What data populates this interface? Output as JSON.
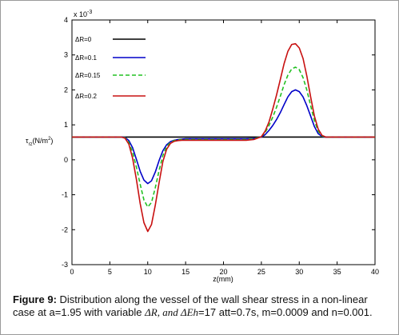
{
  "chart_data": {
    "type": "line",
    "title": "",
    "xlabel": "z(mm)",
    "ylabel_main": "τ",
    "ylabel_sub": "rz",
    "ylabel_unit": "(N/m",
    "ylabel_sup": "2",
    "ylabel_close": ")",
    "y_multiplier_base": "x 10",
    "y_multiplier_exp": "-3",
    "xlim": [
      0,
      40
    ],
    "ylim": [
      -3,
      4
    ],
    "xticks": [
      "0",
      "5",
      "10",
      "15",
      "20",
      "25",
      "30",
      "35",
      "40"
    ],
    "yticks": [
      "-3",
      "-2",
      "-1",
      "0",
      "1",
      "2",
      "3",
      "4"
    ],
    "grid": false,
    "legend_position": "top-left",
    "x": [
      0,
      6,
      6.5,
      7,
      7.5,
      8,
      8.5,
      9,
      9.5,
      10,
      10.5,
      11,
      11.5,
      12,
      12.5,
      13,
      13.5,
      14,
      14.5,
      15,
      16,
      17,
      18,
      19,
      20,
      21,
      22,
      23,
      24,
      25,
      25.5,
      26,
      26.5,
      27,
      27.5,
      28,
      28.5,
      29,
      29.5,
      30,
      30.5,
      31,
      31.5,
      32,
      32.5,
      33,
      33.5,
      34,
      40
    ],
    "series": [
      {
        "name": "ΔR=0",
        "color": "#000000",
        "dash": "solid",
        "values": [
          0.65,
          0.65,
          0.65,
          0.65,
          0.65,
          0.65,
          0.65,
          0.65,
          0.65,
          0.65,
          0.65,
          0.65,
          0.65,
          0.65,
          0.65,
          0.65,
          0.65,
          0.65,
          0.65,
          0.65,
          0.65,
          0.65,
          0.65,
          0.65,
          0.65,
          0.65,
          0.65,
          0.65,
          0.65,
          0.65,
          0.65,
          0.65,
          0.65,
          0.65,
          0.65,
          0.65,
          0.65,
          0.65,
          0.65,
          0.65,
          0.65,
          0.65,
          0.65,
          0.65,
          0.65,
          0.65,
          0.65,
          0.65,
          0.65
        ]
      },
      {
        "name": "ΔR=0.1",
        "color": "#0000c8",
        "dash": "solid",
        "values": [
          0.65,
          0.65,
          0.65,
          0.64,
          0.55,
          0.35,
          0.02,
          -0.33,
          -0.58,
          -0.68,
          -0.6,
          -0.35,
          -0.02,
          0.26,
          0.43,
          0.52,
          0.56,
          0.58,
          0.59,
          0.6,
          0.6,
          0.6,
          0.6,
          0.6,
          0.6,
          0.6,
          0.6,
          0.6,
          0.61,
          0.65,
          0.72,
          0.84,
          0.98,
          1.15,
          1.35,
          1.58,
          1.8,
          1.95,
          2.0,
          1.95,
          1.8,
          1.55,
          1.25,
          0.95,
          0.75,
          0.67,
          0.65,
          0.65,
          0.65
        ]
      },
      {
        "name": "ΔR=0.15",
        "color": "#22c022",
        "dash": "dashed",
        "values": [
          0.65,
          0.65,
          0.65,
          0.63,
          0.5,
          0.22,
          -0.2,
          -0.7,
          -1.15,
          -1.35,
          -1.22,
          -0.8,
          -0.3,
          0.12,
          0.38,
          0.5,
          0.55,
          0.57,
          0.58,
          0.58,
          0.58,
          0.58,
          0.58,
          0.58,
          0.58,
          0.58,
          0.58,
          0.58,
          0.6,
          0.66,
          0.78,
          0.98,
          1.22,
          1.5,
          1.82,
          2.15,
          2.42,
          2.6,
          2.65,
          2.58,
          2.35,
          2.0,
          1.55,
          1.12,
          0.82,
          0.68,
          0.65,
          0.65,
          0.65
        ]
      },
      {
        "name": "ΔR=0.2",
        "color": "#c81010",
        "dash": "solid",
        "values": [
          0.65,
          0.65,
          0.65,
          0.62,
          0.45,
          0.05,
          -0.55,
          -1.25,
          -1.8,
          -2.05,
          -1.85,
          -1.3,
          -0.65,
          -0.05,
          0.3,
          0.47,
          0.53,
          0.55,
          0.56,
          0.56,
          0.56,
          0.56,
          0.56,
          0.56,
          0.56,
          0.56,
          0.56,
          0.56,
          0.58,
          0.66,
          0.82,
          1.08,
          1.45,
          1.85,
          2.3,
          2.75,
          3.1,
          3.3,
          3.32,
          3.2,
          2.9,
          2.4,
          1.8,
          1.25,
          0.88,
          0.7,
          0.65,
          0.65,
          0.65
        ]
      }
    ]
  },
  "caption": {
    "label": "Figure 9:",
    "text_1": " Distribution along the vessel of the wall shear stress in a    non-linear case at a=1.95 with variable ",
    "math_1": "ΔR, and ΔEh",
    "text_2": "=17 att=0.7s, m=0.0009 and n=0.001."
  }
}
